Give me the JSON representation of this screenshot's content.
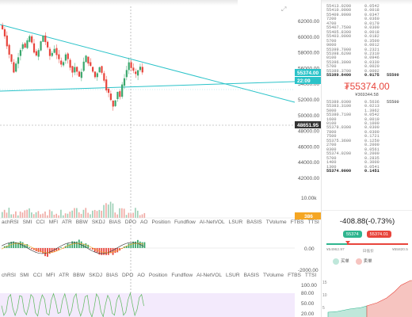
{
  "chart": {
    "y_axis_labels": [
      "62000.00",
      "60000.00",
      "58000.00",
      "56000.00",
      "54000.00",
      "52000.00",
      "50000.00",
      "48000.00",
      "46000.00",
      "44000.00",
      "42000.00"
    ],
    "volume_label": "10.00k",
    "current_price_tag": "55374.00",
    "secondary_tag": "22:09",
    "crosshair_tag": "48651.95",
    "volume_tag": "386",
    "indicator_axis_labels": [
      "0.00",
      "-2000.00"
    ],
    "rsi_axis_labels": [
      "100.00",
      "80.00",
      "50.00",
      "20.00"
    ],
    "colors": {
      "line": "#2bc3c9",
      "up": "#3aa76d",
      "down": "#e8453c",
      "crosshair": "#999999",
      "rsi_band": "#f3eafc"
    }
  },
  "indicator_tabs": [
    "achRSI",
    "SMI",
    "CCI",
    "MFI",
    "ATR",
    "BBW",
    "SKDJ",
    "BIAS",
    "DPO",
    "AO",
    "Position",
    "Fundflow",
    "AI-NetVOL",
    "LSUR",
    "BASIS",
    "TVolume",
    "FTBS",
    "TTSI"
  ],
  "indicator_tabs_2": [
    "chRSI",
    "SMI",
    "CCI",
    "MFI",
    "ATR",
    "BBW",
    "SKDJ",
    "BIAS",
    "DPO",
    "AO",
    "Position",
    "Fundflow",
    "AI-NetVOL",
    "LSUR",
    "BASIS",
    "TVolume",
    "FTBS",
    "TTSI"
  ],
  "orderbook": {
    "asks": [
      [
        "55413.0200",
        "0.0542",
        ""
      ],
      [
        "55410.0900",
        "0.0018",
        ""
      ],
      [
        "55409.9900",
        "0.0347",
        ""
      ],
      [
        "7200",
        "0.0360",
        ""
      ],
      [
        "4700",
        "0.0179",
        ""
      ],
      [
        "55407.7500",
        "0.0300",
        ""
      ],
      [
        "55405.8300",
        "0.0018",
        ""
      ],
      [
        "55403.0000",
        "0.0182",
        ""
      ],
      [
        "5700",
        "0.3500",
        ""
      ],
      [
        "9000",
        "0.0012",
        ""
      ],
      [
        "55399.7000",
        "0.2321",
        ""
      ],
      [
        "55398.6200",
        "0.2310",
        ""
      ],
      [
        "0100",
        "0.0946",
        ""
      ],
      [
        "55396.3000",
        "0.0330",
        ""
      ],
      [
        "5700",
        "0.0020",
        ""
      ],
      [
        "55389.3700",
        "0.0002",
        ""
      ],
      [
        "55389.8400",
        "0.0175",
        "55500"
      ]
    ],
    "last_price": "₮55374.00",
    "last_price_sub": "¥369344.58",
    "bids": [
      [
        "55389.0300",
        "0.5636",
        "55500"
      ],
      [
        "55383.3100",
        "0.0213",
        ""
      ],
      [
        "5000",
        "1.3962",
        ""
      ],
      [
        "55380.7100",
        "0.0542",
        ""
      ],
      [
        "1600",
        "0.0019",
        ""
      ],
      [
        "0100",
        "0.1000",
        ""
      ],
      [
        "55379.0300",
        "0.0300",
        ""
      ],
      [
        "7800",
        "0.0300",
        ""
      ],
      [
        "7500",
        "0.1721",
        ""
      ],
      [
        "55375.3600",
        "0.1250",
        ""
      ],
      [
        "2700",
        "0.2000",
        ""
      ],
      [
        "0300",
        "0.0561",
        ""
      ],
      [
        "55374.0200",
        "0.2000",
        ""
      ],
      [
        "5700",
        "0.2835",
        ""
      ],
      [
        "1400",
        "0.3000",
        ""
      ],
      [
        "1300",
        "0.0541",
        ""
      ],
      [
        "55374.0000",
        "0.1451",
        ""
      ]
    ],
    "change": "-408.88(-0.73%)",
    "bid_pill": "55374",
    "ask_pill": "55374.01",
    "range_low": "¥54962.97",
    "range_mid": "日低价",
    "range_high": "¥55820.5",
    "legend_buy": "买单",
    "legend_sell": "卖单",
    "depth_axis": [
      "15",
      "10",
      "5"
    ],
    "depth_x": [
      "155180",
      "155480"
    ]
  }
}
